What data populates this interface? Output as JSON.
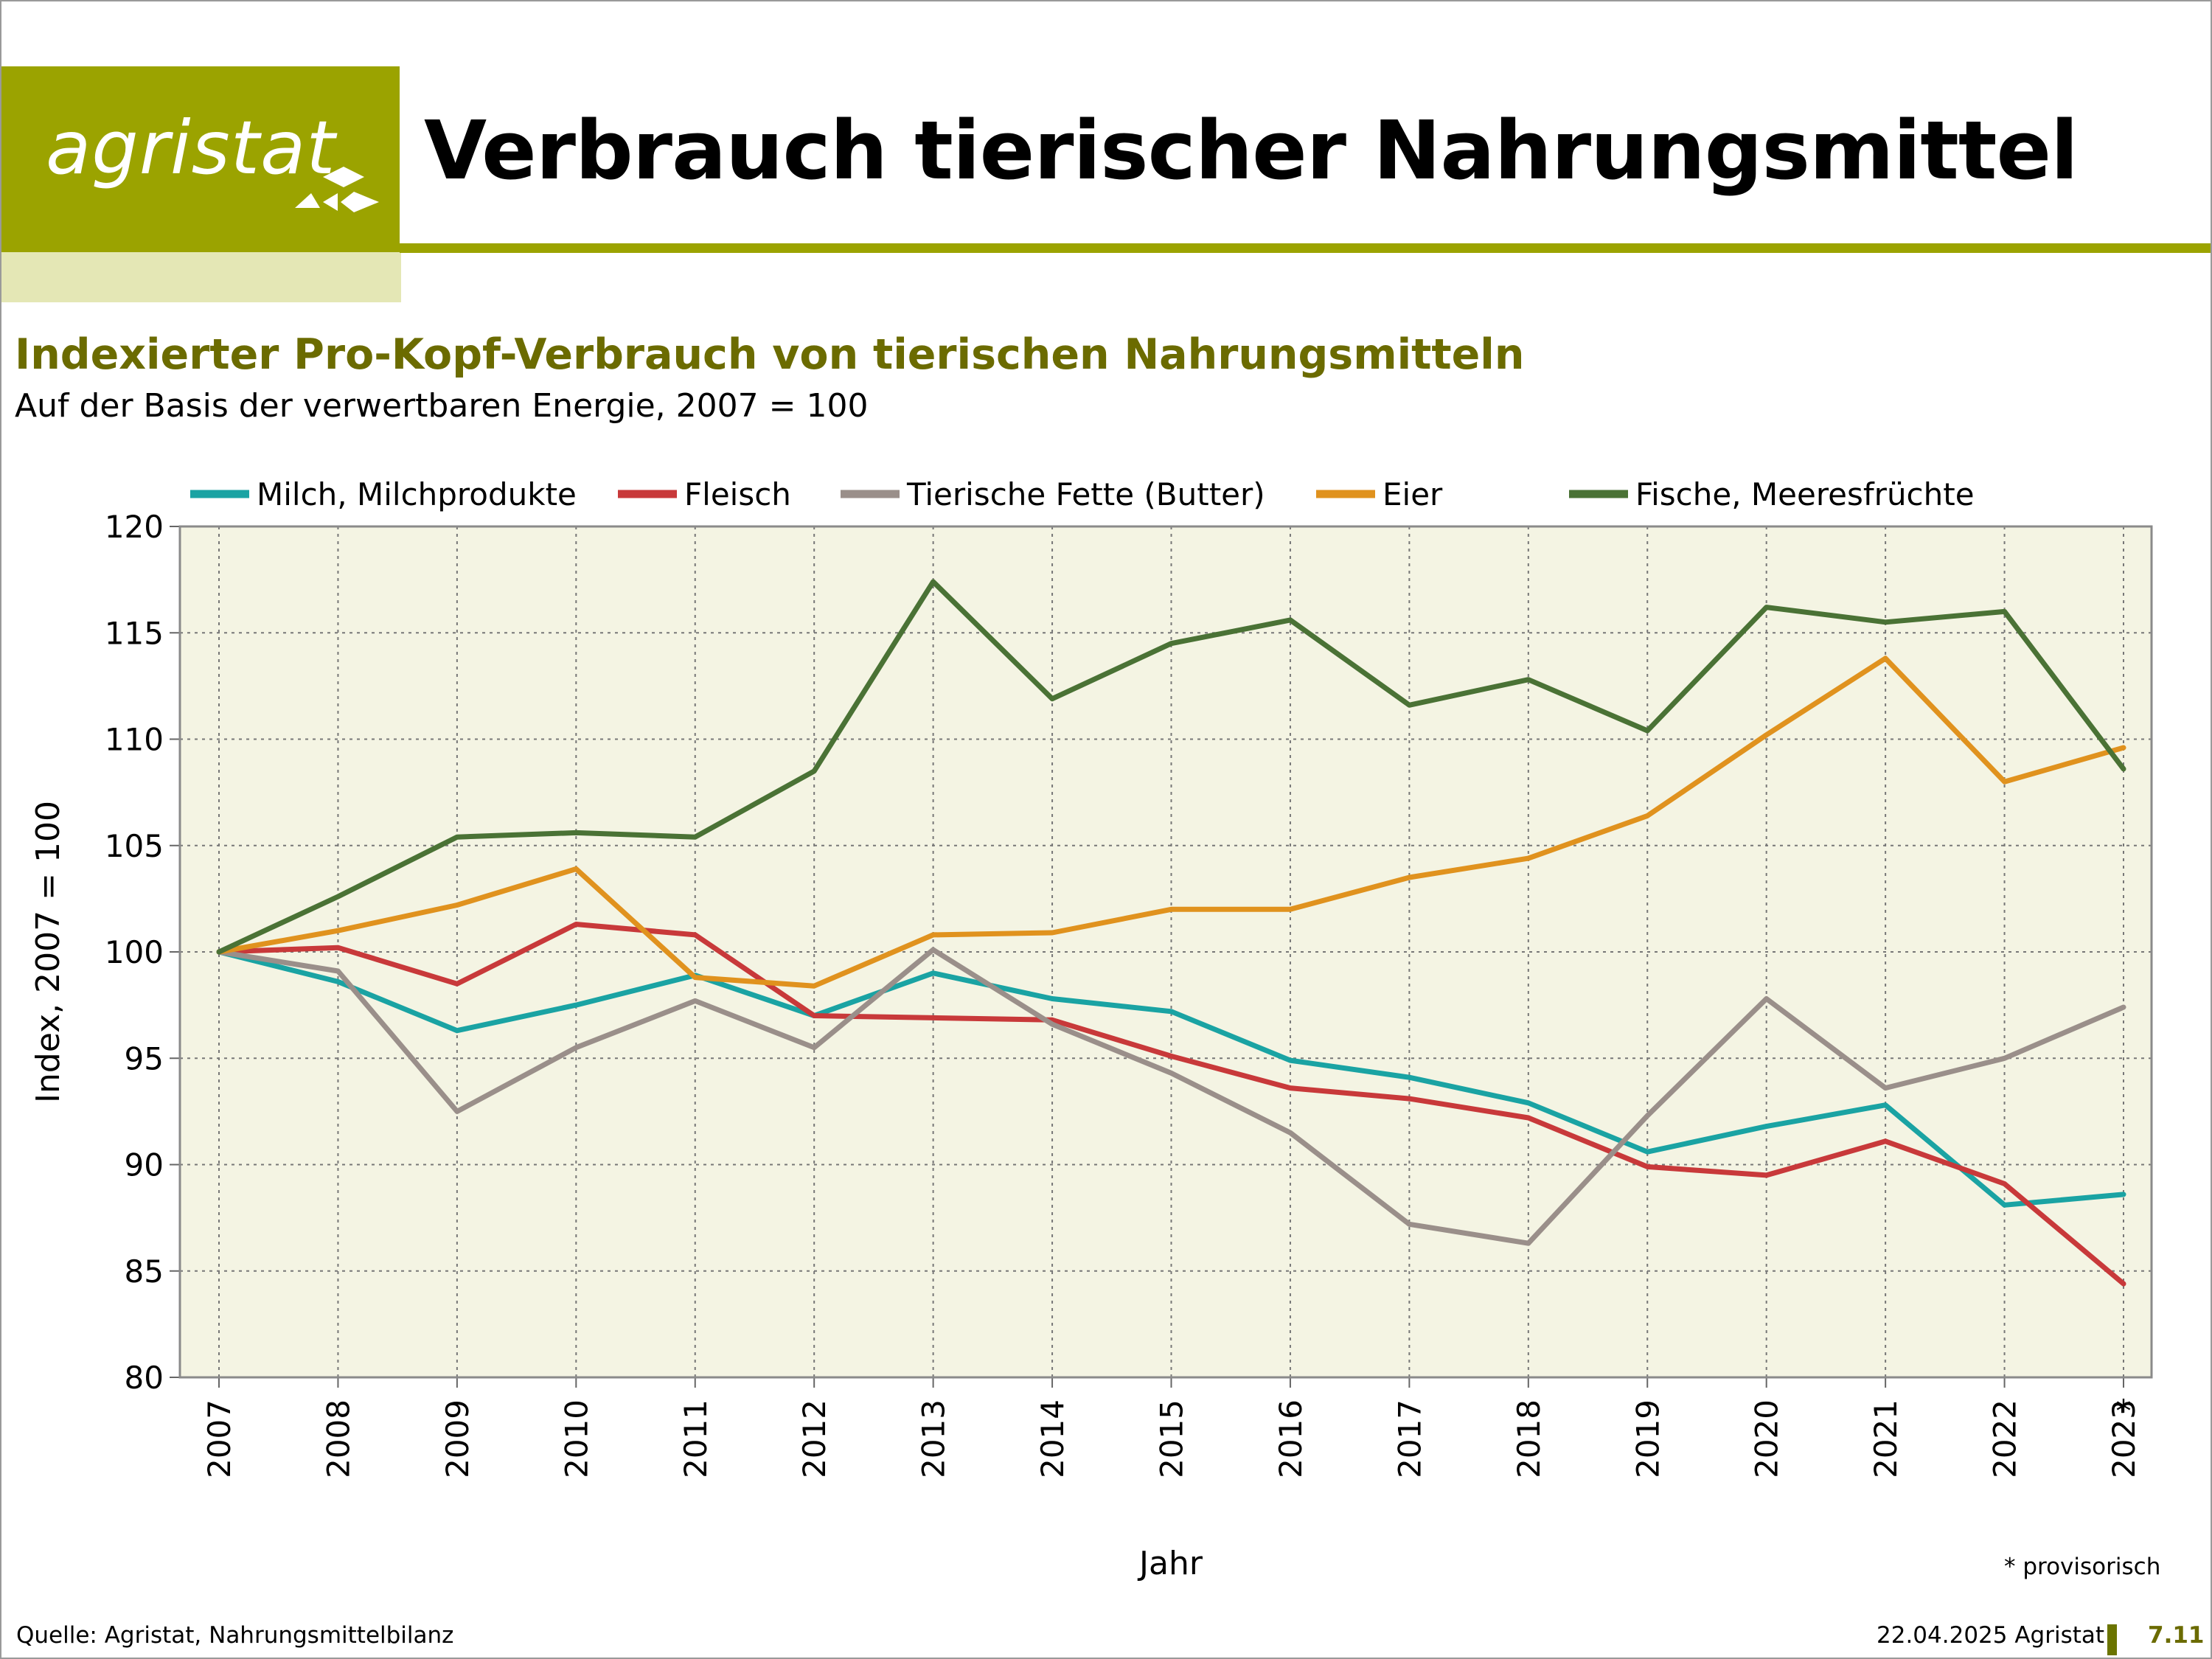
{
  "header": {
    "logo_text": "agristat",
    "title": "Verbrauch tierischer Nahrungsmittel"
  },
  "colors": {
    "brand": "#9ba300",
    "brand_light": "#e4e7b5",
    "plot_bg": "#f4f4e3",
    "subtitle": "#6b6b00"
  },
  "chart_data": {
    "type": "line",
    "title": "Indexierter Pro-Kopf-Verbrauch von tierischen Nahrungsmitteln",
    "subtitle": "Auf der Basis der verwertbaren Energie, 2007 = 100",
    "xlabel": "Jahr",
    "ylabel": "Index, 2007 = 100",
    "ylim": [
      80,
      120
    ],
    "yticks": [
      "80",
      "85",
      "90",
      "95",
      "100",
      "105",
      "110",
      "115",
      "120"
    ],
    "categories": [
      "2007",
      "2008",
      "2009",
      "2010",
      "2011",
      "2012",
      "2013",
      "2014",
      "2015",
      "2016",
      "2017",
      "2018",
      "2019",
      "2020",
      "2021",
      "2022",
      "2023"
    ],
    "x_marker": "*",
    "grid": true,
    "legend_position": "top",
    "series": [
      {
        "name": "Milch, Milchprodukte",
        "color": "#1aa3a3",
        "values": [
          100,
          98.6,
          96.3,
          97.5,
          98.9,
          97.0,
          99.0,
          97.8,
          97.2,
          94.9,
          94.1,
          92.9,
          90.6,
          91.8,
          92.8,
          88.1,
          88.6
        ]
      },
      {
        "name": "Fleisch",
        "color": "#c8393a",
        "values": [
          100,
          100.2,
          98.5,
          101.3,
          100.8,
          97.0,
          96.9,
          96.8,
          95.1,
          93.6,
          93.1,
          92.2,
          89.9,
          89.5,
          91.1,
          89.1,
          84.4
        ]
      },
      {
        "name": "Tierische Fette (Butter)",
        "color": "#9a8f8a",
        "values": [
          100,
          99.1,
          92.5,
          95.5,
          97.7,
          95.5,
          100.1,
          96.6,
          94.3,
          91.5,
          87.2,
          86.3,
          92.3,
          97.8,
          93.6,
          95.0,
          97.4
        ]
      },
      {
        "name": "Eier",
        "color": "#e0921e",
        "values": [
          100,
          101.0,
          102.2,
          103.9,
          98.8,
          98.4,
          100.8,
          100.9,
          102.0,
          102.0,
          103.5,
          104.4,
          106.4,
          110.2,
          113.8,
          108.0,
          109.6
        ]
      },
      {
        "name": "Fische, Meeresfrüchte",
        "color": "#4a7235",
        "values": [
          100,
          102.6,
          105.4,
          105.6,
          105.4,
          108.5,
          117.4,
          111.9,
          114.5,
          115.6,
          111.6,
          112.8,
          110.4,
          116.2,
          115.5,
          116.0,
          108.6
        ]
      }
    ]
  },
  "footnote": "* provisorisch",
  "footer": {
    "source": "Quelle: Agristat, Nahrungsmittelbilanz",
    "date": "22.04.2025 Agristat",
    "page": "7.11"
  }
}
